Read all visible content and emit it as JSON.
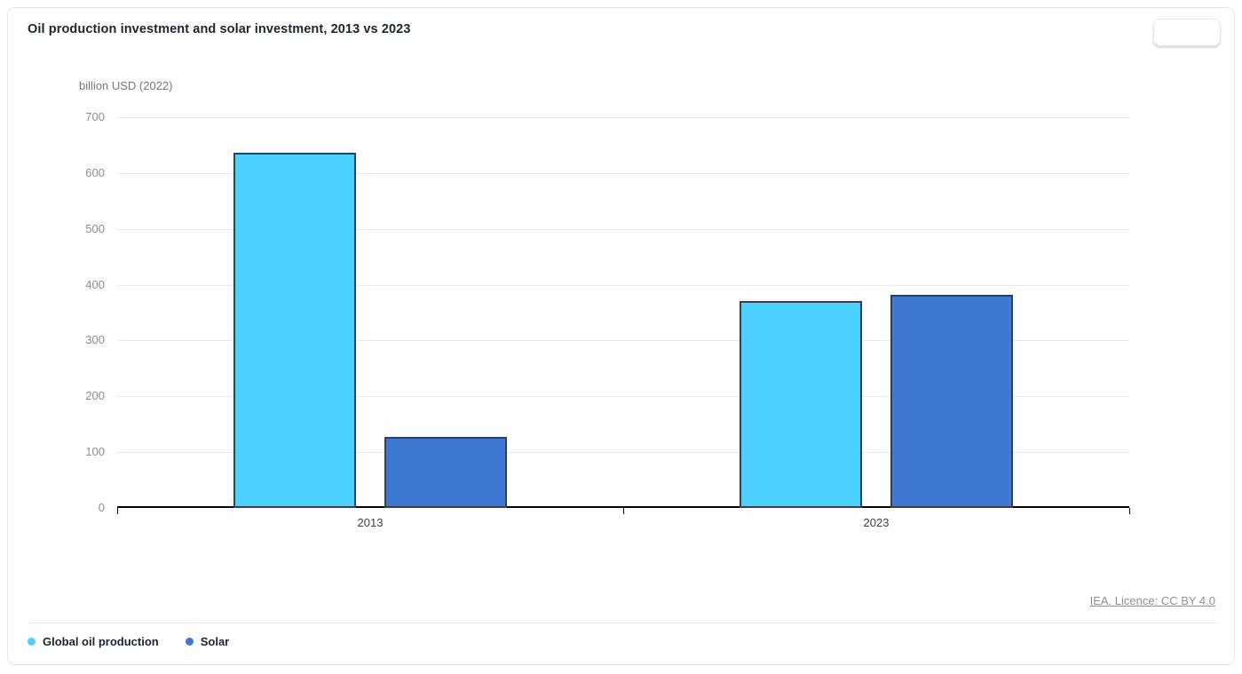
{
  "header": {
    "title": "Oil production investment and solar investment, 2013 vs 2023"
  },
  "toolbar": {
    "options_button_label": ""
  },
  "chart_data": {
    "type": "bar",
    "title": "Oil production investment and solar investment, 2013 vs 2023",
    "ylabel": "billion USD (2022)",
    "xlabel": "",
    "categories": [
      "2013",
      "2023"
    ],
    "series": [
      {
        "name": "Global oil production",
        "color": "#4AD1FF",
        "values": [
          636,
          371
        ]
      },
      {
        "name": "Solar",
        "color": "#3D78D3",
        "values": [
          127,
          382
        ]
      }
    ],
    "ylim": [
      0,
      700
    ],
    "yticks": [
      0,
      100,
      200,
      300,
      400,
      500,
      600,
      700
    ],
    "grid": true,
    "bar_border_color": "#33404D",
    "legend_position": "bottom-left"
  },
  "footer": {
    "source_text": "IEA. Licence: CC BY 4.0"
  }
}
